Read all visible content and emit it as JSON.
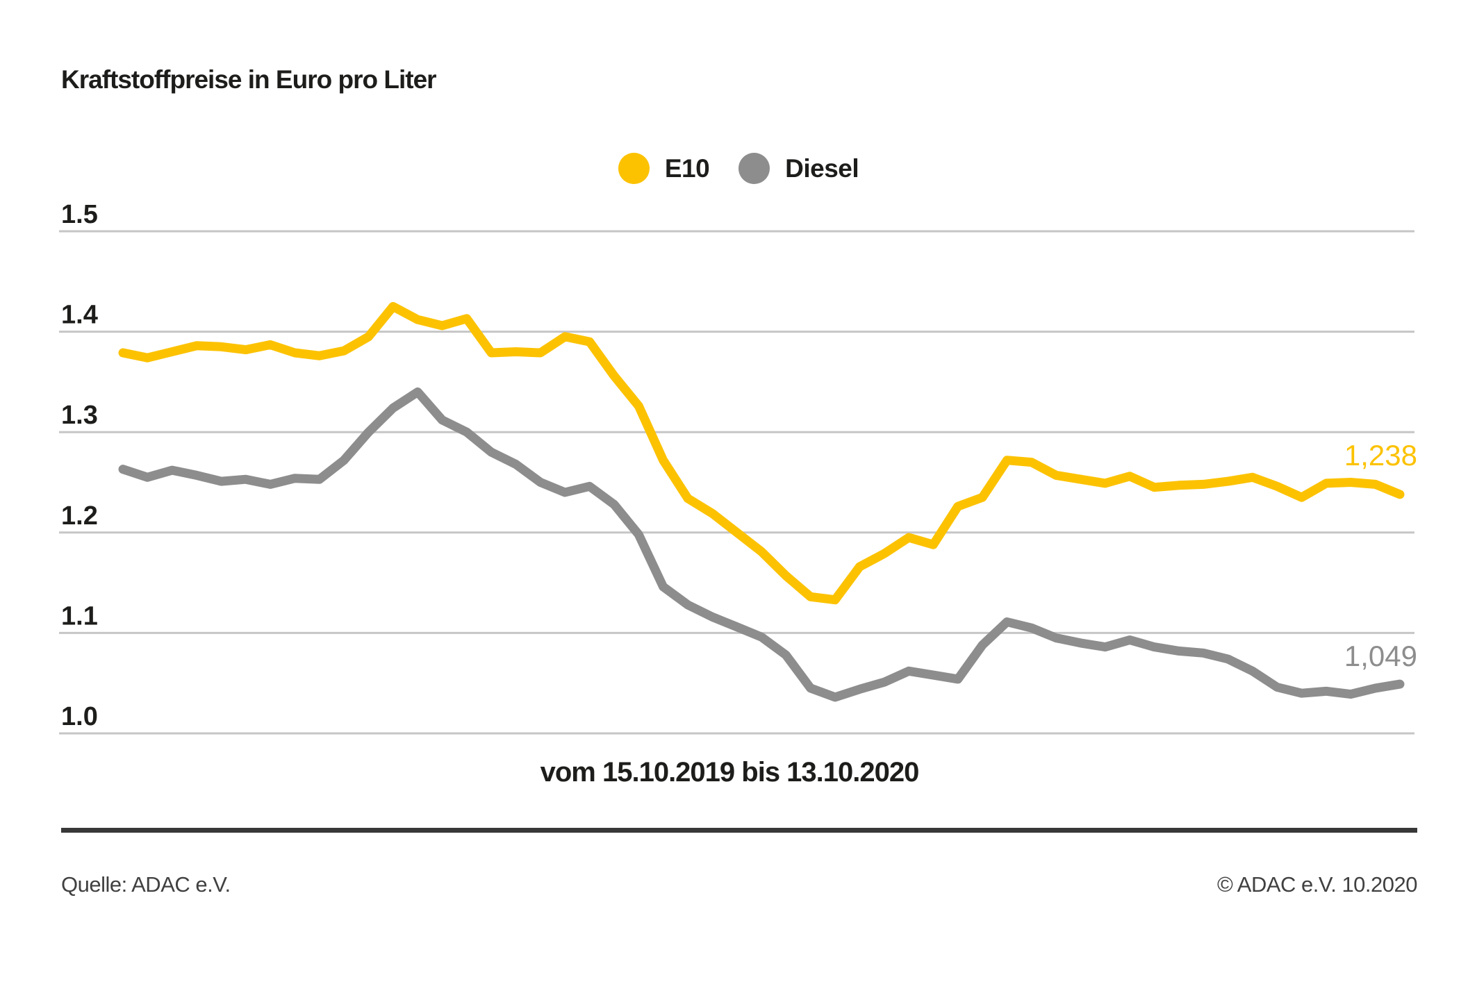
{
  "title": "Kraftstoffpreise in Euro pro Liter",
  "footer": {
    "source": "Quelle: ADAC e.V.",
    "copyright": "© ADAC e.V. 10.2020"
  },
  "colors": {
    "e10": "#fcc200",
    "diesel": "#8d8d8d",
    "text": "#1d1d1b",
    "gridline": "#c6c6c6",
    "footer_rule": "#383838",
    "footer_text": "#404040",
    "background": "#ffffff"
  },
  "chart_data": {
    "type": "line",
    "title": "Kraftstoffpreise in Euro pro Liter",
    "xlabel": "vom 15.10.2019 bis 13.10.2020",
    "ylabel": "Euro pro Liter",
    "x_unit": "week",
    "x_start_label": "15.10.2019",
    "x_end_label": "13.10.2020",
    "ylim": [
      1.0,
      1.5
    ],
    "grid": true,
    "legend_position": "top-center",
    "yticks": [
      {
        "label": "1.5",
        "value": 1.5
      },
      {
        "label": "1.4",
        "value": 1.4
      },
      {
        "label": "1.3",
        "value": 1.3
      },
      {
        "label": "1.2",
        "value": 1.2
      },
      {
        "label": "1.1",
        "value": 1.1
      },
      {
        "label": "1.0",
        "value": 1.0
      }
    ],
    "series": [
      {
        "name": "E10",
        "color": "#fcc200",
        "end_label": "1,238",
        "values": [
          1.379,
          1.374,
          1.38,
          1.386,
          1.385,
          1.382,
          1.387,
          1.379,
          1.376,
          1.381,
          1.395,
          1.425,
          1.412,
          1.406,
          1.413,
          1.379,
          1.38,
          1.379,
          1.395,
          1.39,
          1.356,
          1.326,
          1.272,
          1.234,
          1.219,
          1.2,
          1.181,
          1.157,
          1.136,
          1.133,
          1.166,
          1.179,
          1.195,
          1.188,
          1.226,
          1.235,
          1.272,
          1.27,
          1.257,
          1.253,
          1.249,
          1.256,
          1.245,
          1.247,
          1.248,
          1.251,
          1.255,
          1.246,
          1.235,
          1.249,
          1.25,
          1.248,
          1.238
        ]
      },
      {
        "name": "Diesel",
        "color": "#8d8d8d",
        "end_label": "1,049",
        "values": [
          1.263,
          1.255,
          1.262,
          1.257,
          1.251,
          1.253,
          1.248,
          1.254,
          1.253,
          1.272,
          1.3,
          1.324,
          1.34,
          1.312,
          1.3,
          1.28,
          1.268,
          1.25,
          1.24,
          1.246,
          1.228,
          1.198,
          1.146,
          1.128,
          1.116,
          1.106,
          1.096,
          1.078,
          1.045,
          1.036,
          1.044,
          1.051,
          1.062,
          1.058,
          1.054,
          1.088,
          1.111,
          1.105,
          1.095,
          1.09,
          1.086,
          1.093,
          1.086,
          1.082,
          1.08,
          1.074,
          1.062,
          1.046,
          1.04,
          1.042,
          1.039,
          1.045,
          1.049
        ]
      }
    ]
  }
}
